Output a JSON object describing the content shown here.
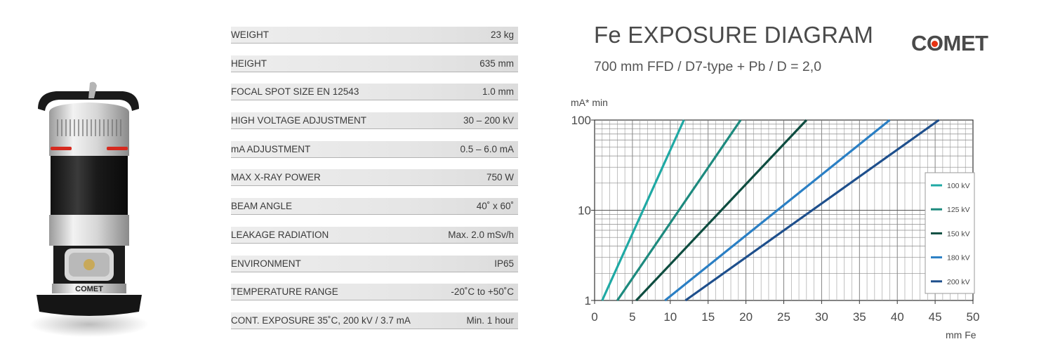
{
  "specs": [
    {
      "name": "WEIGHT",
      "value": "23 kg"
    },
    {
      "name": "HEIGHT",
      "value": "635 mm"
    },
    {
      "name": "FOCAL SPOT SIZE EN 12543",
      "value": "1.0 mm"
    },
    {
      "name": "HIGH VOLTAGE ADJUSTMENT",
      "value": "30 – 200 kV"
    },
    {
      "name": "mA ADJUSTMENT",
      "value": "0.5 – 6.0 mA"
    },
    {
      "name": "MAX X-RAY POWER",
      "value": "750 W"
    },
    {
      "name": "BEAM ANGLE",
      "value": "40˚ x 60˚"
    },
    {
      "name": "LEAKAGE RADIATION",
      "value": "Max. 2.0 mSv/h"
    },
    {
      "name": "ENVIRONMENT",
      "value": "IP65"
    },
    {
      "name": "TEMPERATURE RANGE",
      "value": "-20˚C to +50˚C"
    },
    {
      "name": "CONT. EXPOSURE 35˚C, 200 kV / 3.7 mA",
      "value": "Min. 1 hour"
    }
  ],
  "logo": {
    "text_before": "C",
    "text_o": "O",
    "text_after": "MET",
    "dot_color": "#e63312"
  },
  "product": {
    "label": "COMET"
  },
  "chart_data": {
    "type": "line",
    "title": "Fe EXPOSURE DIAGRAM",
    "subtitle": "700 mm FFD / D7-type + Pb / D = 2,0",
    "xlabel": "mm Fe",
    "ylabel": "mA* min",
    "xlim": [
      0,
      50
    ],
    "ylim": [
      1,
      100
    ],
    "yscale": "log",
    "grid": true,
    "legend_position": "right",
    "x_ticks": [
      0,
      5,
      10,
      15,
      20,
      25,
      30,
      35,
      40,
      45,
      50
    ],
    "y_ticks": [
      1,
      10,
      100
    ],
    "series": [
      {
        "name": "100 kV",
        "color": "#1fa9a4",
        "points": [
          [
            1,
            1
          ],
          [
            11.8,
            100
          ]
        ]
      },
      {
        "name": "125 kV",
        "color": "#1d8a7e",
        "points": [
          [
            3,
            1
          ],
          [
            19.3,
            100
          ]
        ]
      },
      {
        "name": "150 kV",
        "color": "#0e4d40",
        "points": [
          [
            5.5,
            1
          ],
          [
            28,
            100
          ]
        ]
      },
      {
        "name": "180 kV",
        "color": "#2a7fc4",
        "points": [
          [
            9.3,
            1
          ],
          [
            39,
            100
          ]
        ]
      },
      {
        "name": "200 kV",
        "color": "#1e4f8c",
        "points": [
          [
            12,
            1
          ],
          [
            45.5,
            100
          ]
        ]
      }
    ]
  }
}
